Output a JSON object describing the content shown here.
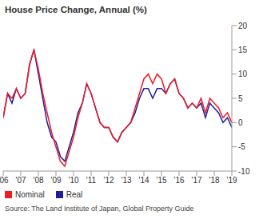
{
  "chart_data": {
    "type": "line",
    "title": "House Price Change, Annual (%)",
    "source": "Source: The Land Institute of Japan, Global Property Guide",
    "x": [
      2006,
      2006.25,
      2006.5,
      2006.75,
      2007,
      2007.25,
      2007.5,
      2007.75,
      2008,
      2008.25,
      2008.5,
      2008.75,
      2009,
      2009.25,
      2009.5,
      2009.75,
      2010,
      2010.25,
      2010.5,
      2010.75,
      2011,
      2011.25,
      2011.5,
      2011.75,
      2012,
      2012.25,
      2012.5,
      2012.75,
      2013,
      2013.25,
      2013.5,
      2013.75,
      2014,
      2014.25,
      2014.5,
      2014.75,
      2015,
      2015.25,
      2015.5,
      2015.75,
      2016,
      2016.25,
      2016.5,
      2016.75,
      2017,
      2017.25,
      2017.5,
      2017.75,
      2018,
      2018.25,
      2018.5,
      2018.75,
      2019
    ],
    "series": [
      {
        "name": "Nominal",
        "color": "#ee1c25",
        "values": [
          1,
          6,
          5,
          7,
          5,
          6,
          12,
          15,
          11,
          6,
          2,
          -2,
          -5,
          -8,
          -9,
          -6,
          -3,
          1,
          4,
          8,
          6,
          3,
          0,
          -1,
          -1,
          -3,
          -4,
          -2,
          -1,
          0,
          3,
          6,
          9,
          10,
          8,
          10,
          9,
          6,
          8,
          9,
          6,
          5,
          3,
          4,
          3,
          5,
          2,
          5,
          4,
          3,
          1,
          2,
          0
        ]
      },
      {
        "name": "Real",
        "color": "#1f1f99",
        "values": [
          1,
          6,
          4,
          7,
          5,
          6,
          12,
          15,
          10,
          5,
          0,
          -3,
          -4,
          -7,
          -8,
          -5,
          -2,
          2,
          4,
          8,
          6,
          3,
          0,
          -1,
          -1,
          -3,
          -4,
          -2,
          -1,
          0,
          2,
          5,
          7,
          7,
          5,
          7,
          7,
          6,
          8,
          9,
          6,
          5,
          3,
          4,
          3,
          4,
          1,
          4,
          3,
          2,
          0,
          1,
          -1
        ]
      }
    ],
    "xlim": [
      2006,
      2019
    ],
    "xticks": [
      {
        "value": 2006,
        "label": "'06"
      },
      {
        "value": 2007,
        "label": "'07"
      },
      {
        "value": 2008,
        "label": "'08"
      },
      {
        "value": 2009,
        "label": "'09"
      },
      {
        "value": 2010,
        "label": "'10"
      },
      {
        "value": 2011,
        "label": "'11"
      },
      {
        "value": 2012,
        "label": "'12"
      },
      {
        "value": 2013,
        "label": "'13"
      },
      {
        "value": 2014,
        "label": "'14"
      },
      {
        "value": 2015,
        "label": "'15"
      },
      {
        "value": 2016,
        "label": "'16"
      },
      {
        "value": 2017,
        "label": "'17"
      },
      {
        "value": 2018,
        "label": "'18"
      },
      {
        "value": 2019,
        "label": "'19"
      }
    ],
    "ylim": [
      -10,
      20
    ],
    "yticks": [
      -10,
      -5,
      0,
      5,
      10,
      15,
      20
    ],
    "grid": false,
    "legend": "bottom left"
  }
}
